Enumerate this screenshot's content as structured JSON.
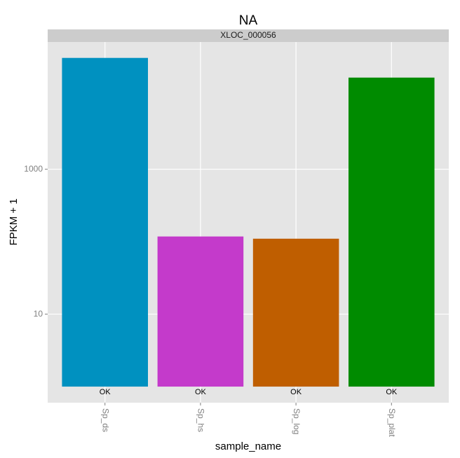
{
  "chart_data": {
    "type": "bar",
    "title": "NA",
    "facet_label": "XLOC_000056",
    "x_label": "sample_name",
    "y_label": "FPKM + 1",
    "categories": [
      "Sp_ds",
      "Sp_hs",
      "Sp_log",
      "Sp_plat"
    ],
    "series": [
      {
        "name": "FPKM + 1",
        "values": [
          34400,
          118,
          110,
          18400
        ]
      }
    ],
    "colors": [
      "#0091c0",
      "#c43acb",
      "#bf5e00",
      "#008b00"
    ],
    "status_labels": [
      "OK",
      "OK",
      "OK",
      "OK"
    ],
    "ylim": [
      0.6,
      57000
    ],
    "yticks": [
      10,
      1000
    ],
    "log_y": true,
    "grid": true
  }
}
